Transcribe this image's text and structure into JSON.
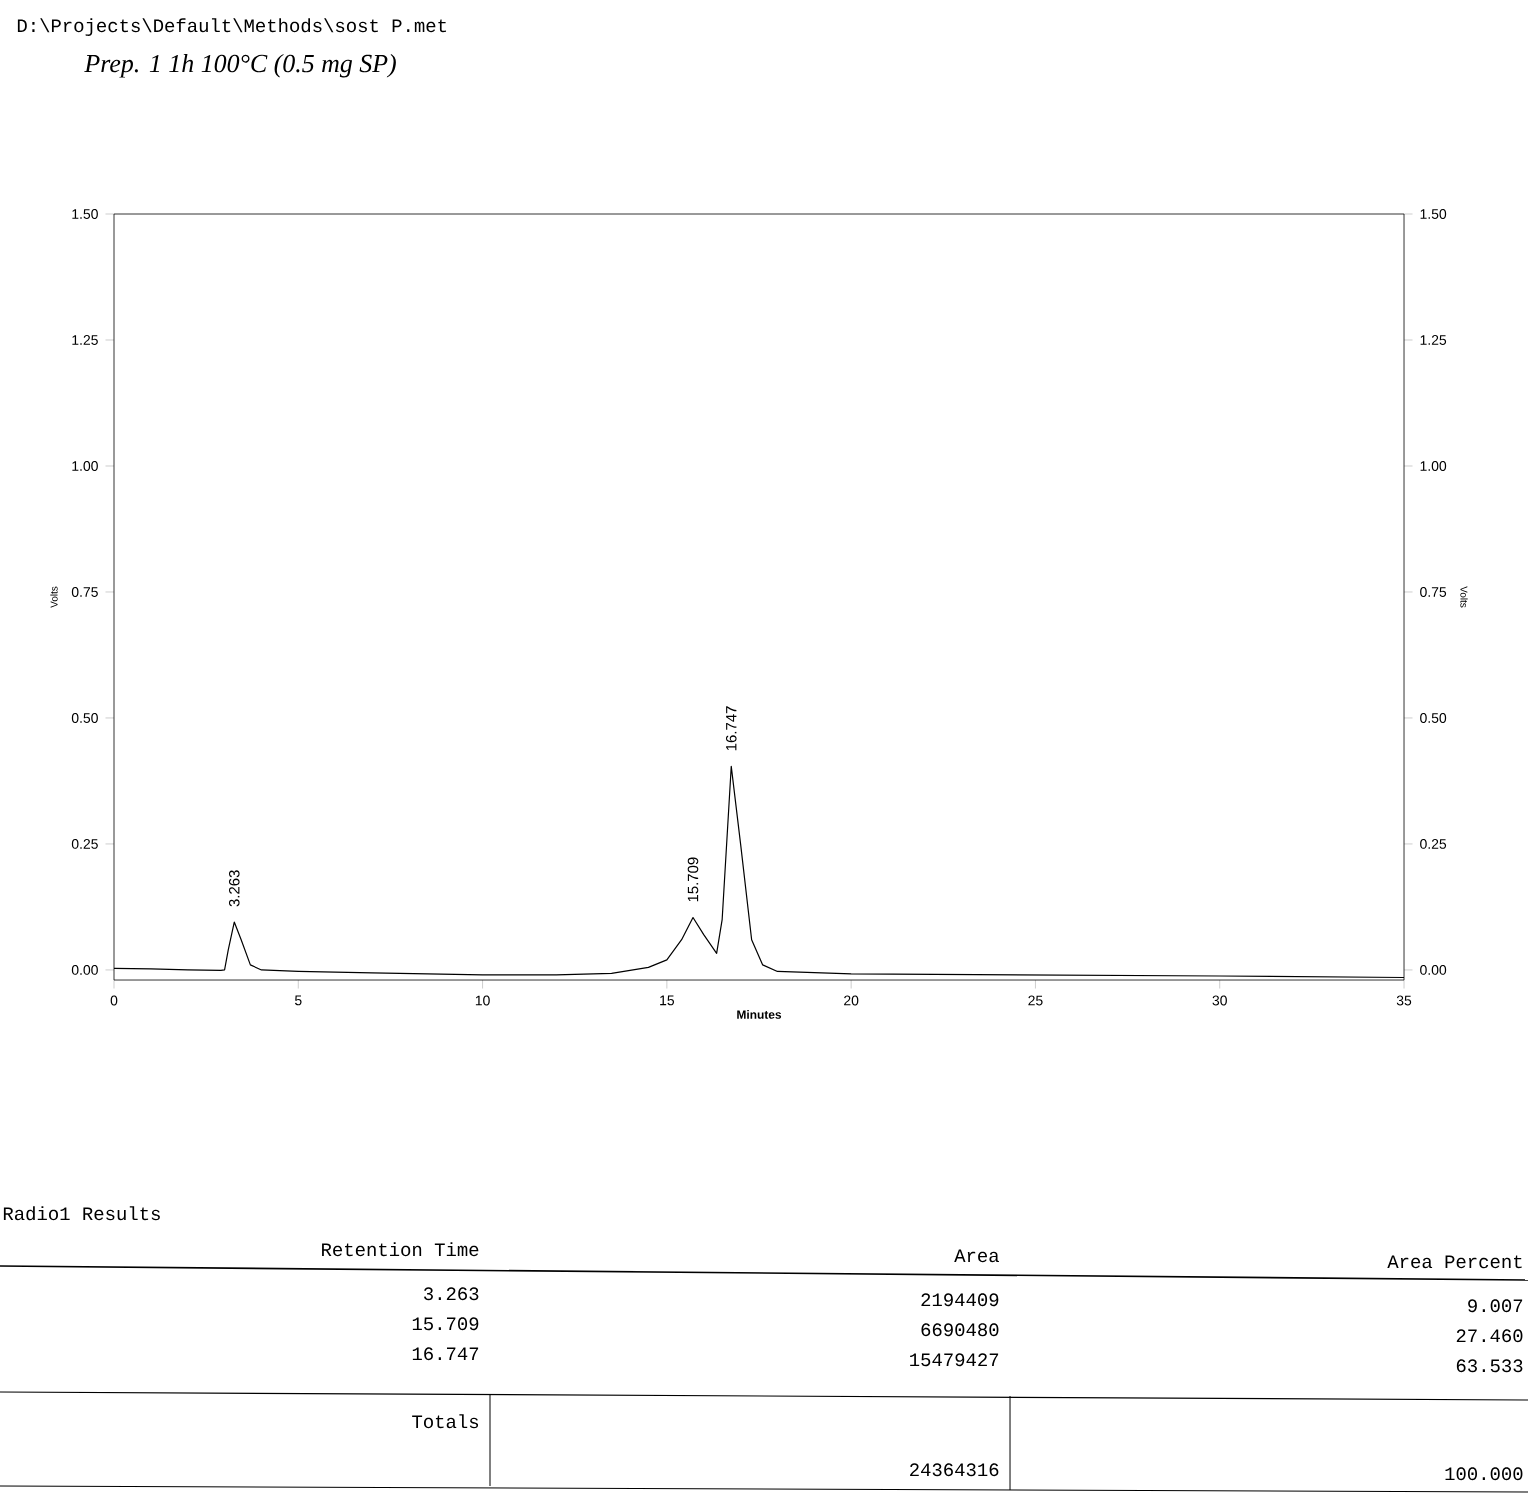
{
  "chart_data": {
    "type": "line",
    "title": "D:\\Projects\\Default\\Methods\\sost P.met",
    "subtitle": "Prep. 1 1h 100°C (0.5 mg SP)",
    "xlabel": "Minutes",
    "ylabel": "Volts",
    "y2label": "Volts",
    "x": [
      0,
      1,
      2,
      2.9,
      3.0,
      3.1,
      3.263,
      3.45,
      3.7,
      4,
      5,
      7,
      10,
      12,
      13.5,
      14.5,
      15,
      15.4,
      15.709,
      16.0,
      16.35,
      16.5,
      16.747,
      17.0,
      17.3,
      17.6,
      18,
      20,
      25,
      30,
      35
    ],
    "values": [
      0.003,
      0.002,
      0.0,
      -0.001,
      0.0,
      0.04,
      0.095,
      0.06,
      0.01,
      0.0,
      -0.003,
      -0.006,
      -0.01,
      -0.01,
      -0.007,
      0.005,
      0.02,
      0.06,
      0.104,
      0.07,
      0.033,
      0.1,
      0.404,
      0.25,
      0.06,
      0.01,
      -0.003,
      -0.008,
      -0.01,
      -0.012,
      -0.015
    ],
    "color": "#000000",
    "marker": "none",
    "xlim": [
      0,
      35
    ],
    "xticks": [
      0,
      5,
      10,
      15,
      20,
      25,
      30,
      35
    ],
    "ylim": [
      -0.02,
      1.5
    ],
    "yticks": [
      {
        "value": 0,
        "label": "0.00"
      },
      {
        "value": 0.25,
        "label": "0.25"
      },
      {
        "value": 0.5,
        "label": "0.50"
      },
      {
        "value": 0.75,
        "label": "0.75"
      },
      {
        "value": 1,
        "label": "1.00"
      },
      {
        "value": 1.25,
        "label": "1.25"
      },
      {
        "value": 1.5,
        "label": "1.50"
      }
    ],
    "y2lim": [
      -0.02,
      1.5
    ],
    "y2ticks": [
      {
        "value": 0,
        "label": "0.00"
      },
      {
        "value": 0.25,
        "label": "0.25"
      },
      {
        "value": 0.5,
        "label": "0.50"
      },
      {
        "value": 0.75,
        "label": "0.75"
      },
      {
        "value": 1,
        "label": "1.00"
      },
      {
        "value": 1.25,
        "label": "1.25"
      },
      {
        "value": 1.5,
        "label": "1.50"
      }
    ],
    "grid": false,
    "annotations": [
      {
        "text": "3.263",
        "x": 3.263,
        "y": 0.095
      },
      {
        "text": "15.709",
        "x": 15.709,
        "y": 0.104
      },
      {
        "text": "16.747",
        "x": 16.747,
        "y": 0.404
      },
      "Radio1 Results",
      "Retention Time",
      "Area",
      "Area Percent",
      "3.263",
      "2194409",
      "9.007",
      "15.709",
      "6690480",
      "27.460",
      "16.747",
      "15479427",
      "63.533",
      "Totals",
      "24364316",
      "100.000"
    ]
  }
}
